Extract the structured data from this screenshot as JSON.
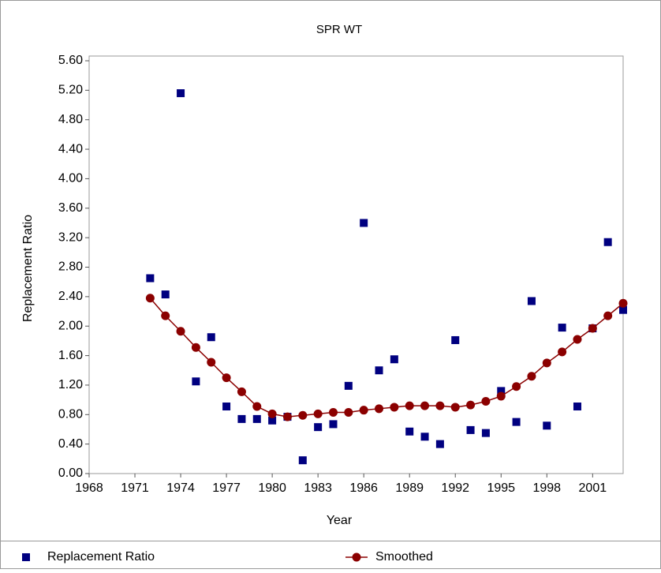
{
  "chart_data": {
    "type": "scatter",
    "title": "SPR WT",
    "x_label": "Year",
    "y_label": "Replacement Ratio",
    "x": [
      1972,
      1973,
      1974,
      1975,
      1976,
      1977,
      1978,
      1979,
      1980,
      1981,
      1982,
      1983,
      1984,
      1985,
      1986,
      1987,
      1988,
      1989,
      1990,
      1991,
      1992,
      1993,
      1994,
      1995,
      1996,
      1997,
      1998,
      1999,
      2000,
      2001,
      2002,
      2003
    ],
    "series": [
      {
        "name": "Replacement Ratio",
        "color": "#000080",
        "style": "markers",
        "values": [
          2.65,
          2.43,
          5.16,
          1.25,
          1.85,
          0.91,
          0.74,
          0.74,
          0.72,
          0.77,
          0.18,
          0.63,
          0.67,
          1.19,
          3.4,
          1.4,
          1.55,
          0.57,
          0.5,
          0.4,
          1.81,
          0.59,
          0.55,
          1.12,
          0.7,
          2.34,
          0.65,
          1.98,
          0.91,
          1.97,
          3.14,
          2.22
        ]
      },
      {
        "name": "Smoothed",
        "color": "#8b0000",
        "style": "line-markers",
        "values": [
          2.38,
          2.14,
          1.93,
          1.71,
          1.51,
          1.3,
          1.11,
          0.91,
          0.81,
          0.77,
          0.79,
          0.81,
          0.83,
          0.83,
          0.86,
          0.88,
          0.9,
          0.92,
          0.92,
          0.92,
          0.9,
          0.93,
          0.98,
          1.05,
          1.18,
          1.32,
          1.5,
          1.65,
          1.82,
          1.97,
          2.14,
          2.31
        ]
      }
    ],
    "xlim": [
      1968,
      2003
    ],
    "xticks": [
      1968,
      1971,
      1974,
      1977,
      1980,
      1983,
      1986,
      1989,
      1992,
      1995,
      1998,
      2001
    ],
    "ylim": [
      0,
      5.6
    ],
    "yticks": [
      {
        "value": 0,
        "label": "0.00"
      },
      {
        "value": 0.4,
        "label": "0.40"
      },
      {
        "value": 0.8,
        "label": "0.80"
      },
      {
        "value": 1.2,
        "label": "1.20"
      },
      {
        "value": 1.6,
        "label": "1.60"
      },
      {
        "value": 2,
        "label": "2.00"
      },
      {
        "value": 2.4,
        "label": "2.40"
      },
      {
        "value": 2.8,
        "label": "2.80"
      },
      {
        "value": 3.2,
        "label": "3.20"
      },
      {
        "value": 3.6,
        "label": "3.60"
      },
      {
        "value": 4,
        "label": "4.00"
      },
      {
        "value": 4.4,
        "label": "4.40"
      },
      {
        "value": 4.8,
        "label": "4.80"
      },
      {
        "value": 5.2,
        "label": "5.20"
      },
      {
        "value": 5.6,
        "label": "5.60"
      }
    ],
    "grid": false,
    "legend": "bottom"
  }
}
